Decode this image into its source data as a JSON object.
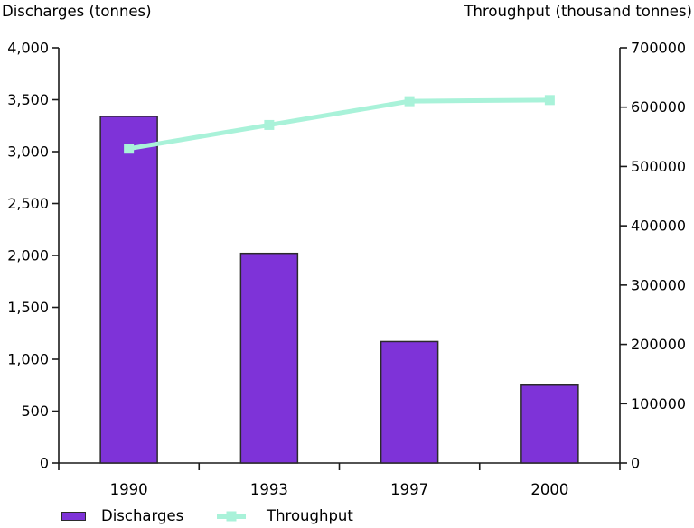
{
  "chart_data": {
    "type": "bar",
    "subtype": "bar+line dual-axis",
    "categories": [
      "1990",
      "1993",
      "1997",
      "2000"
    ],
    "series": [
      {
        "name": "Discharges",
        "type": "bar",
        "axis": "left",
        "values": [
          3340,
          2020,
          1170,
          750
        ],
        "color": "#7e33d8",
        "border_color": "#2b2b2b"
      },
      {
        "name": "Throughput",
        "type": "line",
        "axis": "right",
        "values": [
          530000,
          570000,
          610000,
          612000
        ],
        "color": "#a9f2d9",
        "marker": "square"
      }
    ],
    "left_axis": {
      "title": "Discharges (tonnes)",
      "min": 0,
      "max": 4000,
      "step": 500,
      "tick_labels": [
        "0",
        "500",
        "1,000",
        "1,500",
        "2,000",
        "2,500",
        "3,000",
        "3,500",
        "4,000"
      ]
    },
    "right_axis": {
      "title": "Throughput (thousand tonnes)",
      "min": 0,
      "max": 700000,
      "step": 100000,
      "tick_labels": [
        "0",
        "100000",
        "200000",
        "300000",
        "400000",
        "500000",
        "600000",
        "700000"
      ]
    },
    "grid": "off",
    "legend_position": "bottom",
    "background": "#ffffff",
    "axis_color": "#1a1a1a"
  },
  "legend": {
    "discharges_label": "Discharges",
    "throughput_label": "Throughput"
  }
}
